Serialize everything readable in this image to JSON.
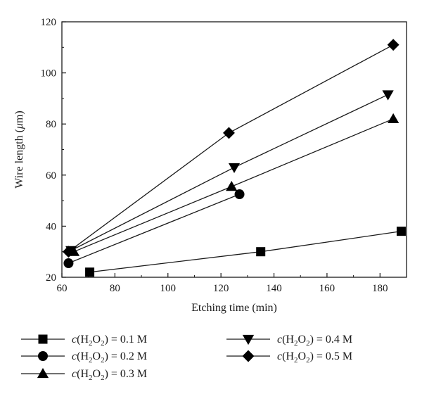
{
  "chart_data": {
    "type": "line",
    "xlabel": "Etching time (min)",
    "ylabel_prefix": "Wire length (",
    "ylabel_unit": "μ",
    "ylabel_unit_rest": "m",
    "ylabel_suffix": ")",
    "xlim": [
      60,
      190
    ],
    "ylim": [
      20,
      120
    ],
    "xticks": [
      60,
      80,
      100,
      120,
      140,
      160,
      180
    ],
    "yticks": [
      20,
      40,
      60,
      80,
      100,
      120
    ],
    "grid": false,
    "legend_position": "bottom",
    "series": [
      {
        "name": "c(H2O2) = 0.1 M",
        "conc": "0.1",
        "marker": "square",
        "x": [
          70.5,
          135,
          188
        ],
        "y": [
          22,
          30,
          38
        ]
      },
      {
        "name": "c(H2O2) = 0.2 M",
        "conc": "0.2",
        "marker": "circle",
        "x": [
          62.5,
          127
        ],
        "y": [
          25.5,
          52.5
        ]
      },
      {
        "name": "c(H2O2) = 0.3 M",
        "conc": "0.3",
        "marker": "triangle-up",
        "x": [
          64.5,
          124,
          185
        ],
        "y": [
          30,
          55.5,
          82
        ]
      },
      {
        "name": "c(H2O2) = 0.4 M",
        "conc": "0.4",
        "marker": "triangle-down",
        "x": [
          63.5,
          125,
          183
        ],
        "y": [
          30.5,
          63,
          91.5
        ]
      },
      {
        "name": "c(H2O2) = 0.5 M",
        "conc": "0.5",
        "marker": "diamond",
        "x": [
          62.5,
          123,
          185
        ],
        "y": [
          30,
          76.5,
          111
        ]
      }
    ]
  }
}
